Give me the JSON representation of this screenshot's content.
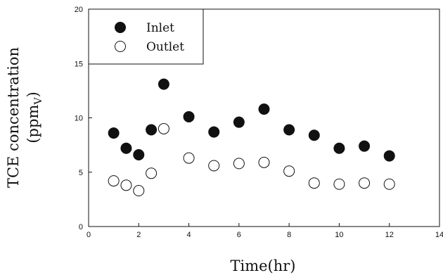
{
  "chart_data": {
    "type": "scatter",
    "title": "",
    "xlabel": "Time(hr)",
    "ylabel_line1": "TCE concentration",
    "ylabel_line2_main": "(ppm",
    "ylabel_line2_sub": "V",
    "ylabel_line2_close": ")",
    "xlim": [
      0,
      14
    ],
    "ylim": [
      0,
      20
    ],
    "x_ticks": [
      0,
      2,
      4,
      6,
      8,
      10,
      12,
      14
    ],
    "y_ticks": [
      0,
      5,
      10,
      15,
      20
    ],
    "x_tick_labels": [
      "0",
      "2",
      "4",
      "6",
      "8",
      "10",
      "12",
      "14"
    ],
    "y_tick_labels": [
      "0",
      "5",
      "10",
      "15",
      "20"
    ],
    "grid": false,
    "legend_position": "top-left",
    "series": [
      {
        "name": "Inlet",
        "marker": "filled-circle",
        "color": "#111111",
        "x": [
          1,
          1.5,
          2,
          2.5,
          3,
          4,
          5,
          6,
          7,
          8,
          9,
          10,
          11,
          12
        ],
        "y": [
          8.6,
          7.2,
          6.6,
          8.9,
          13.1,
          10.1,
          8.7,
          9.6,
          10.8,
          8.9,
          8.4,
          7.2,
          7.4,
          6.5
        ]
      },
      {
        "name": "Outlet",
        "marker": "open-circle",
        "color": "#111111",
        "x": [
          1,
          1.5,
          2,
          2.5,
          3,
          4,
          5,
          6,
          7,
          8,
          9,
          10,
          11,
          12
        ],
        "y": [
          4.2,
          3.8,
          3.3,
          4.9,
          9.0,
          6.3,
          5.6,
          5.8,
          5.9,
          5.1,
          4.0,
          3.9,
          4.0,
          3.9
        ]
      }
    ]
  }
}
